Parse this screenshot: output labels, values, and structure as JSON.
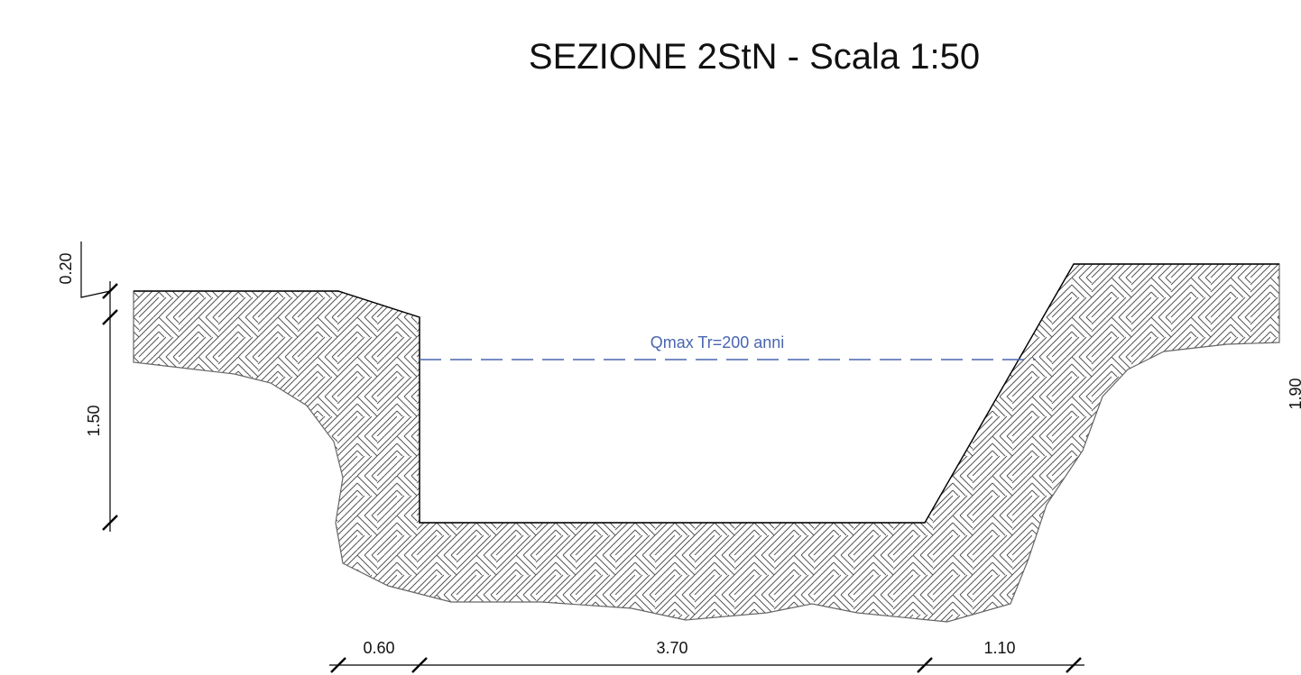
{
  "header": {
    "title": "SEZIONE 2StN - Scala 1:50"
  },
  "water_level": {
    "label": "Qmax Tr=200 anni"
  },
  "dimensions": {
    "vertical": [
      "0.20",
      "1.50",
      "1.90"
    ],
    "horizontal": [
      "0.60",
      "3.70",
      "1.10"
    ]
  }
}
